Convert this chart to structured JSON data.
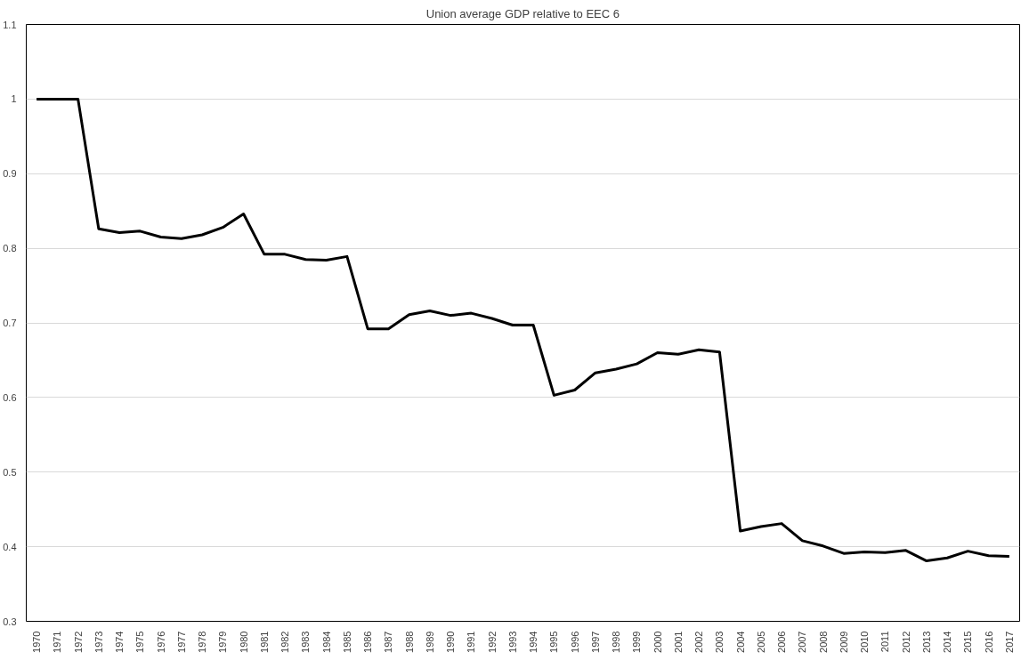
{
  "chart_data": {
    "type": "line",
    "title": "Union average GDP relative to EEC 6",
    "categories": [
      "1970",
      "1971",
      "1972",
      "1973",
      "1974",
      "1975",
      "1976",
      "1977",
      "1978",
      "1979",
      "1980",
      "1981",
      "1982",
      "1983",
      "1984",
      "1985",
      "1986",
      "1987",
      "1988",
      "1989",
      "1990",
      "1991",
      "1992",
      "1993",
      "1994",
      "1995",
      "1996",
      "1997",
      "1998",
      "1999",
      "2000",
      "2001",
      "2002",
      "2003",
      "2004",
      "2005",
      "2006",
      "2007",
      "2008",
      "2009",
      "2010",
      "2011",
      "2012",
      "2013",
      "2014",
      "2015",
      "2016",
      "2017"
    ],
    "series": [
      {
        "color": "#000000",
        "values": [
          1.0,
          1.0,
          1.0,
          0.826,
          0.821,
          0.823,
          0.815,
          0.813,
          0.818,
          0.828,
          0.846,
          0.792,
          0.792,
          0.785,
          0.784,
          0.789,
          0.692,
          0.692,
          0.711,
          0.716,
          0.71,
          0.713,
          0.706,
          0.697,
          0.697,
          0.603,
          0.61,
          0.633,
          0.638,
          0.645,
          0.66,
          0.658,
          0.664,
          0.661,
          0.421,
          0.427,
          0.431,
          0.408,
          0.401,
          0.391,
          0.393,
          0.392,
          0.395,
          0.381,
          0.385,
          0.394,
          0.388,
          0.387
        ]
      }
    ],
    "ylim": [
      0.3,
      1.1
    ],
    "yticks": [
      0.3,
      0.4,
      0.5,
      0.6,
      0.7,
      0.8,
      0.9,
      1,
      1.1
    ],
    "grid": "y",
    "marker": "none",
    "line_style": "solid"
  }
}
